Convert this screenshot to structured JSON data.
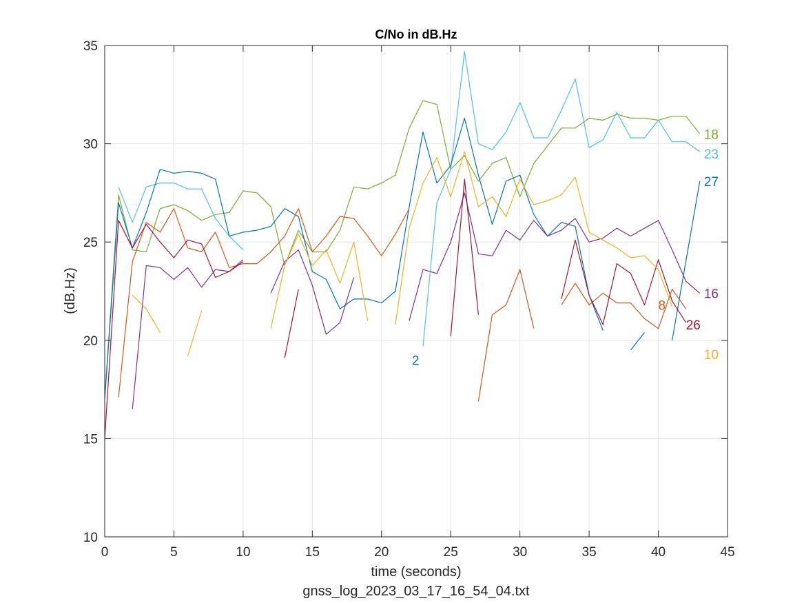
{
  "chart_data": {
    "type": "line",
    "title": "C/No in dB.Hz",
    "xlabel": "time (seconds)",
    "ylabel": "(dB.Hz)",
    "caption": "gnss_log_2023_03_17_16_54_04.txt",
    "xlim": [
      0,
      45
    ],
    "ylim": [
      10,
      35
    ],
    "xticks": [
      0,
      5,
      10,
      15,
      20,
      25,
      30,
      35,
      40,
      45
    ],
    "yticks": [
      10,
      15,
      20,
      25,
      30,
      35
    ],
    "grid": true,
    "series": [
      {
        "name": "18",
        "color": "#77AC30",
        "segments": [
          [
            [
              0,
              17.1
            ],
            [
              1,
              27.4
            ],
            [
              2,
              24.6
            ],
            [
              3,
              24.5
            ],
            [
              4,
              26.7
            ],
            [
              5,
              26.9
            ],
            [
              6,
              26.6
            ],
            [
              7,
              26.1
            ],
            [
              8,
              26.4
            ],
            [
              9,
              26.5
            ],
            [
              10,
              27.6
            ],
            [
              11,
              27.5
            ],
            [
              12,
              26.8
            ],
            [
              13,
              23.8
            ],
            [
              14,
              25.6
            ],
            [
              15,
              24.5
            ],
            [
              16,
              24.5
            ],
            [
              17,
              25.6
            ],
            [
              18,
              27.8
            ],
            [
              19,
              27.7
            ],
            [
              20,
              28.0
            ],
            [
              21,
              28.4
            ],
            [
              22,
              30.8
            ],
            [
              23,
              32.2
            ],
            [
              24,
              32.0
            ],
            [
              25,
              28.7
            ],
            [
              26,
              29.4
            ],
            [
              27,
              28.1
            ],
            [
              28,
              29.0
            ],
            [
              29,
              29.3
            ],
            [
              30,
              27.3
            ],
            [
              31,
              29.0
            ],
            [
              32,
              29.9
            ],
            [
              33,
              30.8
            ],
            [
              34,
              30.8
            ],
            [
              35,
              31.3
            ],
            [
              36,
              31.2
            ],
            [
              37,
              31.5
            ],
            [
              38,
              31.3
            ],
            [
              39,
              31.3
            ],
            [
              40,
              31.2
            ],
            [
              41,
              31.4
            ],
            [
              42,
              31.4
            ],
            [
              43,
              30.5
            ]
          ]
        ]
      },
      {
        "name": "23",
        "color": "#4DBEEE",
        "segments": [
          [
            [
              1,
              27.8
            ],
            [
              2,
              26.0
            ],
            [
              3,
              27.8
            ],
            [
              4,
              28.0
            ],
            [
              5,
              28.0
            ],
            [
              6,
              27.7
            ],
            [
              7,
              27.7
            ],
            [
              8,
              26.2
            ],
            [
              9,
              25.3
            ],
            [
              10,
              24.6
            ]
          ],
          [
            [
              23,
              19.7
            ],
            [
              24,
              27.0
            ],
            [
              25,
              28.7
            ],
            [
              26,
              34.7
            ],
            [
              27,
              30.0
            ],
            [
              28,
              29.7
            ],
            [
              29,
              30.6
            ],
            [
              30,
              32.1
            ],
            [
              31,
              30.3
            ],
            [
              32,
              30.3
            ],
            [
              33,
              31.7
            ],
            [
              34,
              33.3
            ],
            [
              35,
              29.8
            ],
            [
              36,
              30.2
            ],
            [
              37,
              31.6
            ],
            [
              38,
              30.3
            ],
            [
              39,
              30.3
            ],
            [
              40,
              31.2
            ],
            [
              41,
              30.1
            ],
            [
              42,
              30.1
            ],
            [
              43,
              29.6
            ]
          ]
        ]
      },
      {
        "name": "27",
        "color": "#0072BD",
        "segments": [
          [
            [
              0,
              17.0
            ],
            [
              1,
              27.0
            ],
            [
              2,
              24.7
            ],
            [
              3,
              26.5
            ],
            [
              4,
              28.7
            ],
            [
              5,
              28.5
            ],
            [
              6,
              28.6
            ],
            [
              7,
              28.5
            ],
            [
              8,
              28.2
            ],
            [
              9,
              25.3
            ],
            [
              10,
              25.5
            ],
            [
              11,
              25.6
            ],
            [
              12,
              25.8
            ],
            [
              13,
              26.7
            ],
            [
              14,
              26.3
            ],
            [
              15,
              23.5
            ],
            [
              16,
              23.1
            ],
            [
              17,
              21.6
            ],
            [
              18,
              22.1
            ],
            [
              19,
              22.1
            ],
            [
              20,
              21.9
            ],
            [
              21,
              22.5
            ],
            [
              22,
              26.8
            ],
            [
              23,
              30.6
            ],
            [
              24,
              28.0
            ],
            [
              25,
              28.9
            ],
            [
              26,
              31.3
            ],
            [
              27,
              28.4
            ],
            [
              28,
              25.9
            ],
            [
              29,
              28.1
            ],
            [
              30,
              28.4
            ],
            [
              31,
              26.4
            ],
            [
              32,
              25.3
            ],
            [
              33,
              26.0
            ],
            [
              34,
              25.8
            ],
            [
              35,
              22.3
            ],
            [
              36,
              20.5
            ]
          ],
          [
            [
              38,
              19.5
            ],
            [
              39,
              20.4
            ]
          ],
          [
            [
              41,
              20.0
            ],
            [
              43,
              28.1
            ]
          ]
        ]
      },
      {
        "name": "16",
        "color": "#7E2F8E",
        "segments": [
          [
            [
              2,
              16.5
            ],
            [
              3,
              23.8
            ],
            [
              4,
              23.7
            ],
            [
              5,
              23.1
            ],
            [
              6,
              23.7
            ],
            [
              7,
              22.7
            ],
            [
              8,
              23.6
            ],
            [
              9,
              23.5
            ],
            [
              10,
              24.1
            ]
          ],
          [
            [
              12,
              22.4
            ],
            [
              13,
              24.0
            ],
            [
              14,
              24.6
            ],
            [
              15,
              22.8
            ],
            [
              16,
              20.3
            ],
            [
              17,
              20.9
            ],
            [
              18,
              23.2
            ]
          ],
          [
            [
              22,
              21.0
            ],
            [
              23,
              23.6
            ],
            [
              24,
              23.4
            ],
            [
              25,
              25.0
            ],
            [
              26,
              27.5
            ],
            [
              27,
              24.4
            ],
            [
              28,
              24.3
            ],
            [
              29,
              25.6
            ],
            [
              30,
              25.1
            ],
            [
              31,
              26.1
            ],
            [
              32,
              25.3
            ],
            [
              33,
              25.6
            ],
            [
              34,
              26.2
            ],
            [
              35,
              25.0
            ],
            [
              36,
              25.2
            ],
            [
              37,
              25.7
            ],
            [
              38,
              25.3
            ],
            [
              39,
              25.7
            ],
            [
              40,
              26.1
            ],
            [
              41,
              24.6
            ],
            [
              42,
              23.0
            ],
            [
              43,
              22.4
            ]
          ]
        ]
      },
      {
        "name": "8",
        "color": "#D95319",
        "segments": [
          [
            [
              1,
              17.1
            ],
            [
              2,
              24.0
            ],
            [
              3,
              26.0
            ],
            [
              4,
              25.5
            ],
            [
              5,
              26.7
            ],
            [
              6,
              24.7
            ],
            [
              7,
              24.5
            ],
            [
              8,
              25.5
            ],
            [
              9,
              23.7
            ],
            [
              10,
              23.9
            ],
            [
              11,
              23.9
            ],
            [
              12,
              24.5
            ],
            [
              13,
              25.3
            ],
            [
              14,
              26.7
            ],
            [
              15,
              24.5
            ],
            [
              16,
              25.3
            ],
            [
              17,
              26.3
            ],
            [
              18,
              26.2
            ],
            [
              19,
              25.3
            ],
            [
              20,
              24.3
            ],
            [
              21,
              25.4
            ],
            [
              22,
              26.7
            ]
          ],
          [
            [
              27,
              16.9
            ],
            [
              28,
              21.3
            ],
            [
              29,
              21.8
            ],
            [
              30,
              23.6
            ],
            [
              31,
              20.6
            ]
          ],
          [
            [
              33,
              21.8
            ],
            [
              34,
              22.9
            ],
            [
              35,
              21.8
            ],
            [
              36,
              22.4
            ],
            [
              37,
              21.9
            ],
            [
              38,
              21.9
            ],
            [
              39,
              21.1
            ],
            [
              40,
              20.6
            ],
            [
              41,
              22.6
            ],
            [
              42,
              21.6
            ]
          ]
        ]
      },
      {
        "name": "26",
        "color": "#A2142F",
        "segments": [
          [
            [
              0,
              15.0
            ],
            [
              1,
              26.1
            ],
            [
              2,
              24.7
            ],
            [
              3,
              25.9
            ],
            [
              4,
              25.0
            ],
            [
              5,
              24.2
            ],
            [
              6,
              25.1
            ],
            [
              7,
              24.9
            ],
            [
              8,
              23.2
            ],
            [
              9,
              23.5
            ],
            [
              10,
              24.0
            ]
          ],
          [
            [
              13,
              19.1
            ],
            [
              14,
              22.6
            ]
          ],
          [
            [
              25,
              20.2
            ],
            [
              26,
              28.2
            ],
            [
              27,
              21.3
            ]
          ],
          [
            [
              33,
              22.1
            ],
            [
              34,
              25.1
            ],
            [
              35,
              22.3
            ],
            [
              36,
              20.8
            ],
            [
              37,
              23.9
            ],
            [
              38,
              23.4
            ],
            [
              39,
              21.8
            ],
            [
              40,
              24.1
            ],
            [
              41,
              22.0
            ],
            [
              42,
              20.9
            ]
          ]
        ]
      },
      {
        "name": "10",
        "color": "#EDB120",
        "segments": [
          [
            [
              2,
              22.3
            ],
            [
              3,
              21.6
            ],
            [
              4,
              20.4
            ]
          ],
          [
            [
              6,
              19.2
            ],
            [
              7,
              21.5
            ]
          ],
          [
            [
              12,
              20.6
            ],
            [
              13,
              23.8
            ],
            [
              14,
              25.4
            ],
            [
              15,
              23.8
            ],
            [
              16,
              24.6
            ],
            [
              17,
              22.9
            ],
            [
              18,
              25.0
            ],
            [
              19,
              21.0
            ]
          ],
          [
            [
              21,
              20.8
            ],
            [
              22,
              25.7
            ],
            [
              23,
              28.0
            ],
            [
              24,
              29.3
            ],
            [
              25,
              27.3
            ],
            [
              26,
              29.6
            ],
            [
              27,
              26.8
            ],
            [
              28,
              27.3
            ],
            [
              29,
              26.3
            ],
            [
              30,
              28.2
            ],
            [
              31,
              26.9
            ],
            [
              32,
              27.1
            ],
            [
              33,
              27.4
            ],
            [
              34,
              28.3
            ],
            [
              35,
              25.5
            ],
            [
              36,
              25.1
            ],
            [
              37,
              24.7
            ],
            [
              38,
              24.2
            ],
            [
              39,
              24.3
            ],
            [
              40,
              23.6
            ],
            [
              41,
              21.7
            ]
          ]
        ]
      }
    ],
    "annotations": [
      {
        "text": "18",
        "x": 43.3,
        "y": 30.5,
        "color": "#77AC30"
      },
      {
        "text": "23",
        "x": 43.3,
        "y": 29.5,
        "color": "#4DBEEE"
      },
      {
        "text": "27",
        "x": 43.3,
        "y": 28.1,
        "color": "#0072BD"
      },
      {
        "text": "16",
        "x": 43.3,
        "y": 22.4,
        "color": "#7E2F8E"
      },
      {
        "text": "8",
        "x": 40.0,
        "y": 21.8,
        "color": "#D95319"
      },
      {
        "text": "26",
        "x": 42.0,
        "y": 20.8,
        "color": "#A2142F"
      },
      {
        "text": "10",
        "x": 43.3,
        "y": 19.3,
        "color": "#EDB120"
      },
      {
        "text": "2",
        "x": 22.2,
        "y": 19.0,
        "color": "#0072BD"
      }
    ]
  }
}
